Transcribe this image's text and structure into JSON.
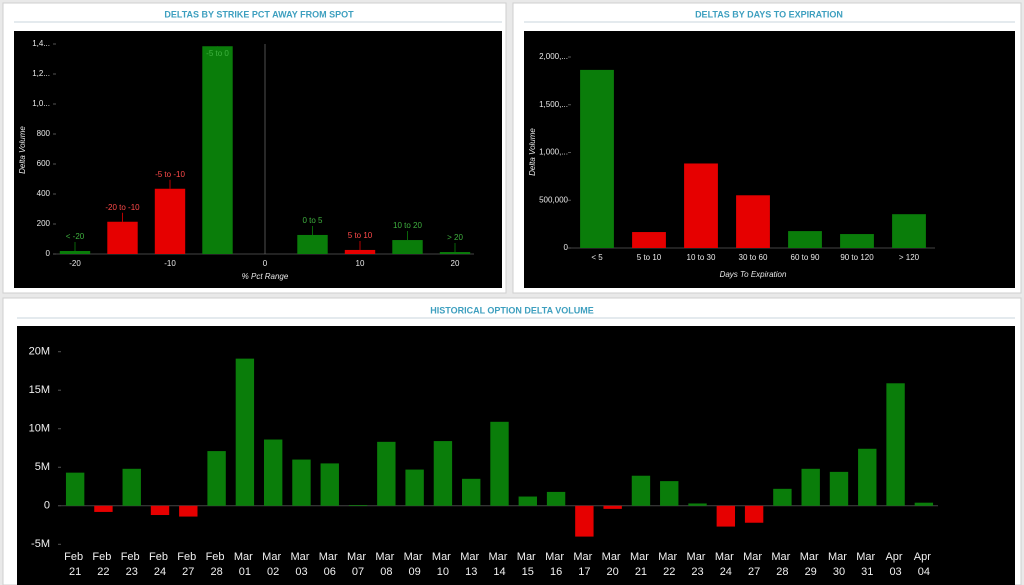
{
  "chart_data": [
    {
      "type": "bar",
      "title": "DELTAS BY STRIKE PCT AWAY FROM SPOT",
      "x_label": "% Pct Range",
      "y_label": "Delta Volume",
      "x": [
        -20,
        -15,
        -10,
        -5,
        5,
        10,
        15,
        20
      ],
      "bar_labels": [
        "< -20",
        "-20 to -10",
        "-5 to -10",
        "-5 to 0",
        "0 to 5",
        "5 to 10",
        "10 to 20",
        "> 20"
      ],
      "values": [
        20,
        215,
        435,
        1385,
        127,
        27,
        93,
        13
      ],
      "colors": [
        "#0a7d0a",
        "#e60000",
        "#e60000",
        "#0a7d0a",
        "#0a7d0a",
        "#e60000",
        "#0a7d0a",
        "#0a7d0a"
      ],
      "xlim": [
        -22,
        22
      ],
      "xticks": [
        -20,
        -10,
        0,
        10,
        20
      ],
      "ylim": [
        0,
        1400
      ],
      "yticks": [
        0,
        200,
        400,
        600,
        800,
        {
          "value": 1000,
          "label": "1,0..."
        },
        {
          "value": 1200,
          "label": "1,2..."
        },
        {
          "value": 1400,
          "label": "1,4..."
        }
      ]
    },
    {
      "type": "bar",
      "title": "DELTAS BY DAYS TO EXPIRATION",
      "x_label": "Days To Expiration",
      "y_label": "Delta Volume",
      "categories": [
        "< 5",
        "5 to 10",
        "10 to 30",
        "30 to 60",
        "60 to 90",
        "90 to 120",
        "> 120"
      ],
      "values": [
        1865000,
        167000,
        885000,
        552000,
        177000,
        146000,
        354000
      ],
      "colors": [
        "#0a7d0a",
        "#e60000",
        "#e60000",
        "#e60000",
        "#0a7d0a",
        "#0a7d0a",
        "#0a7d0a"
      ],
      "ylim": [
        0,
        2000000
      ],
      "yticks": [
        0,
        {
          "value": 500000,
          "label": "500,000"
        },
        {
          "value": 1000000,
          "label": "1,000,..."
        },
        {
          "value": 1500000,
          "label": "1,500,..."
        },
        {
          "value": 2000000,
          "label": "2,000,..."
        }
      ]
    },
    {
      "type": "bar",
      "title": "HISTORICAL OPTION DELTA VOLUME",
      "categories": [
        "Feb 21",
        "Feb 22",
        "Feb 23",
        "Feb 24",
        "Feb 27",
        "Feb 28",
        "Mar 01",
        "Mar 02",
        "Mar 03",
        "Mar 06",
        "Mar 07",
        "Mar 08",
        "Mar 09",
        "Mar 10",
        "Mar 13",
        "Mar 14",
        "Mar 15",
        "Mar 16",
        "Mar 17",
        "Mar 20",
        "Mar 21",
        "Mar 22",
        "Mar 23",
        "Mar 24",
        "Mar 27",
        "Mar 28",
        "Mar 29",
        "Mar 30",
        "Mar 31",
        "Apr 03",
        "Apr 04"
      ],
      "values": [
        4300000,
        -800000,
        4800000,
        -1200000,
        -1400000,
        7100000,
        19100000,
        8600000,
        6000000,
        5500000,
        100000,
        8300000,
        4700000,
        8400000,
        3500000,
        10900000,
        1200000,
        1800000,
        -4000000,
        -400000,
        3900000,
        3200000,
        300000,
        -2700000,
        -2200000,
        2200000,
        4800000,
        4400000,
        7400000,
        15900000,
        400000
      ],
      "colors": [
        "#0a7d0a",
        "#e60000",
        "#0a7d0a",
        "#e60000",
        "#e60000",
        "#0a7d0a",
        "#0a7d0a",
        "#0a7d0a",
        "#0a7d0a",
        "#0a7d0a",
        "#0a7d0a",
        "#0a7d0a",
        "#0a7d0a",
        "#0a7d0a",
        "#0a7d0a",
        "#0a7d0a",
        "#0a7d0a",
        "#0a7d0a",
        "#e60000",
        "#e60000",
        "#0a7d0a",
        "#0a7d0a",
        "#0a7d0a",
        "#e60000",
        "#e60000",
        "#0a7d0a",
        "#0a7d0a",
        "#0a7d0a",
        "#0a7d0a",
        "#0a7d0a",
        "#0a7d0a"
      ],
      "ylim": [
        -6000000,
        21000000
      ],
      "yticks": [
        {
          "value": -5000000,
          "label": "-5M"
        },
        0,
        {
          "value": 5000000,
          "label": "5M"
        },
        {
          "value": 10000000,
          "label": "10M"
        },
        {
          "value": 15000000,
          "label": "15M"
        },
        {
          "value": 20000000,
          "label": "20M"
        }
      ]
    }
  ]
}
